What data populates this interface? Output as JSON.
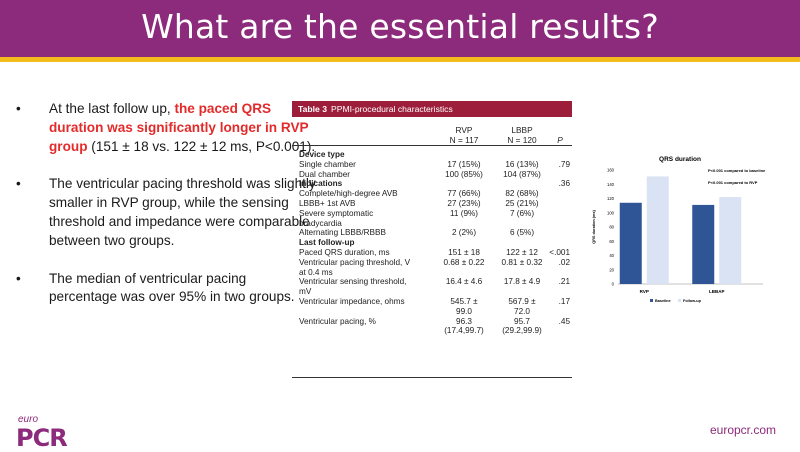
{
  "title": "What are the essential results?",
  "bullets": [
    {
      "pre": "At the last follow up, ",
      "highlight": "the paced QRS duration was significantly longer in RVP group",
      "post": " (151 ± 18 vs. 122 ± 12 ms, P<0.001)."
    },
    {
      "pre": "The ventricular pacing threshold was slightly smaller in RVP group, while the sensing threshold and impedance were comparable between two groups.",
      "highlight": "",
      "post": ""
    },
    {
      "pre": "The median of ventricular pacing percentage was over 95% in two groups.",
      "highlight": "",
      "post": ""
    }
  ],
  "bullet_symbol": "•",
  "table": {
    "label": "Table 3",
    "caption": "PPMI-procedural characteristics",
    "col_rvp": "RVP",
    "col_rvp_n": "N = 117",
    "col_lbbp": "LBBP",
    "col_lbbp_n": "N = 120",
    "col_p": "P",
    "rows": [
      {
        "c0": "Device type",
        "c1": "",
        "c2": "",
        "c3": "",
        "section": true
      },
      {
        "c0": "Single chamber",
        "c1": "17 (15%)",
        "c2": "16 (13%)",
        "c3": ".79"
      },
      {
        "c0": "Dual chamber",
        "c1": "100 (85%)",
        "c2": "104 (87%)",
        "c3": ""
      },
      {
        "c0": "Indications",
        "c1": "",
        "c2": "",
        "c3": ".36",
        "section": true
      },
      {
        "c0": "Complete/high-degree AVB",
        "c1": "77 (66%)",
        "c2": "82 (68%)",
        "c3": ""
      },
      {
        "c0": "LBBB+ 1st AVB",
        "c1": "27 (23%)",
        "c2": "25 (21%)",
        "c3": ""
      },
      {
        "c0": "Severe symptomatic",
        "c1": "11 (9%)",
        "c2": "7 (6%)",
        "c3": ""
      },
      {
        "c0": "   bradycardia",
        "c1": "",
        "c2": "",
        "c3": ""
      },
      {
        "c0": "Alternating LBBB/RBBB",
        "c1": "2 (2%)",
        "c2": "6 (5%)",
        "c3": ""
      },
      {
        "c0": "Last follow-up",
        "c1": "",
        "c2": "",
        "c3": "",
        "section": true
      },
      {
        "c0": "Paced QRS duration, ms",
        "c1": "151 ± 18",
        "c2": "122 ± 12",
        "c3": "<.001"
      },
      {
        "c0": "Ventricular pacing threshold, V",
        "c1": "0.68 ± 0.22",
        "c2": "0.81 ± 0.32",
        "c3": ".02"
      },
      {
        "c0": "   at 0.4 ms",
        "c1": "",
        "c2": "",
        "c3": ""
      },
      {
        "c0": "Ventricular sensing threshold,",
        "c1": "16.4 ± 4.6",
        "c2": "17.8 ± 4.9",
        "c3": ".21"
      },
      {
        "c0": "   mV",
        "c1": "",
        "c2": "",
        "c3": ""
      },
      {
        "c0": "Ventricular impedance, ohms",
        "c1": "545.7 ±",
        "c2": "567.9 ±",
        "c3": ".17"
      },
      {
        "c0": "",
        "c1": "99.0",
        "c2": "72.0",
        "c3": ""
      },
      {
        "c0": "Ventricular pacing, %",
        "c1": "96.3",
        "c2": "95.7",
        "c3": ".45"
      },
      {
        "c0": "",
        "c1": "(17.4,99.7)",
        "c2": "(29.2,99.9)",
        "c3": ""
      }
    ]
  },
  "chart_data": {
    "type": "bar",
    "title": "QRS duration",
    "ylabel": "QRS duration (ms)",
    "categories": [
      "RVP",
      "LBBAP"
    ],
    "series": [
      {
        "name": "Baseline",
        "values": [
          114,
          111
        ],
        "color": "#2f5597"
      },
      {
        "name": "Follow-up",
        "values": [
          151,
          122
        ],
        "color": "#dae3f3"
      }
    ],
    "ylim": [
      0,
      160
    ],
    "yticks": [
      0,
      20,
      40,
      60,
      80,
      100,
      120,
      140,
      160
    ],
    "annotations": [
      "P<0.001 compared to baseline",
      "P<0.001 compared to RVP"
    ],
    "legend_position": "bottom"
  },
  "footer": {
    "logo_top": "euro",
    "logo_main": "PCR",
    "url": "europcr.com"
  },
  "colors": {
    "header": "#8c2a7b",
    "accent_line": "#f3bb1c",
    "highlight": "#e32b2b",
    "table_header": "#9d1e3a"
  }
}
